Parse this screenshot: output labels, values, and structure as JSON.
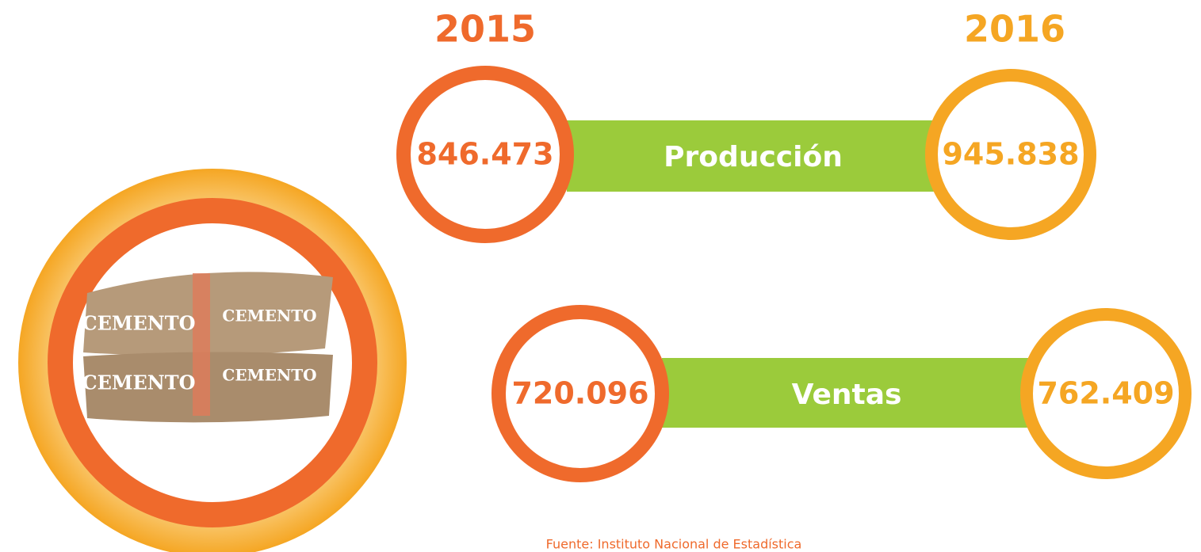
{
  "years": [
    "2015",
    "2016"
  ],
  "rows": [
    {
      "label": "Producción",
      "values": [
        "846.473",
        "945.838"
      ]
    },
    {
      "label": "Ventas",
      "values": [
        "720.096",
        "762.409"
      ]
    }
  ],
  "bag_label": "CEMENTO",
  "source": "Fuente: Instituto Nacional de Estadística"
}
